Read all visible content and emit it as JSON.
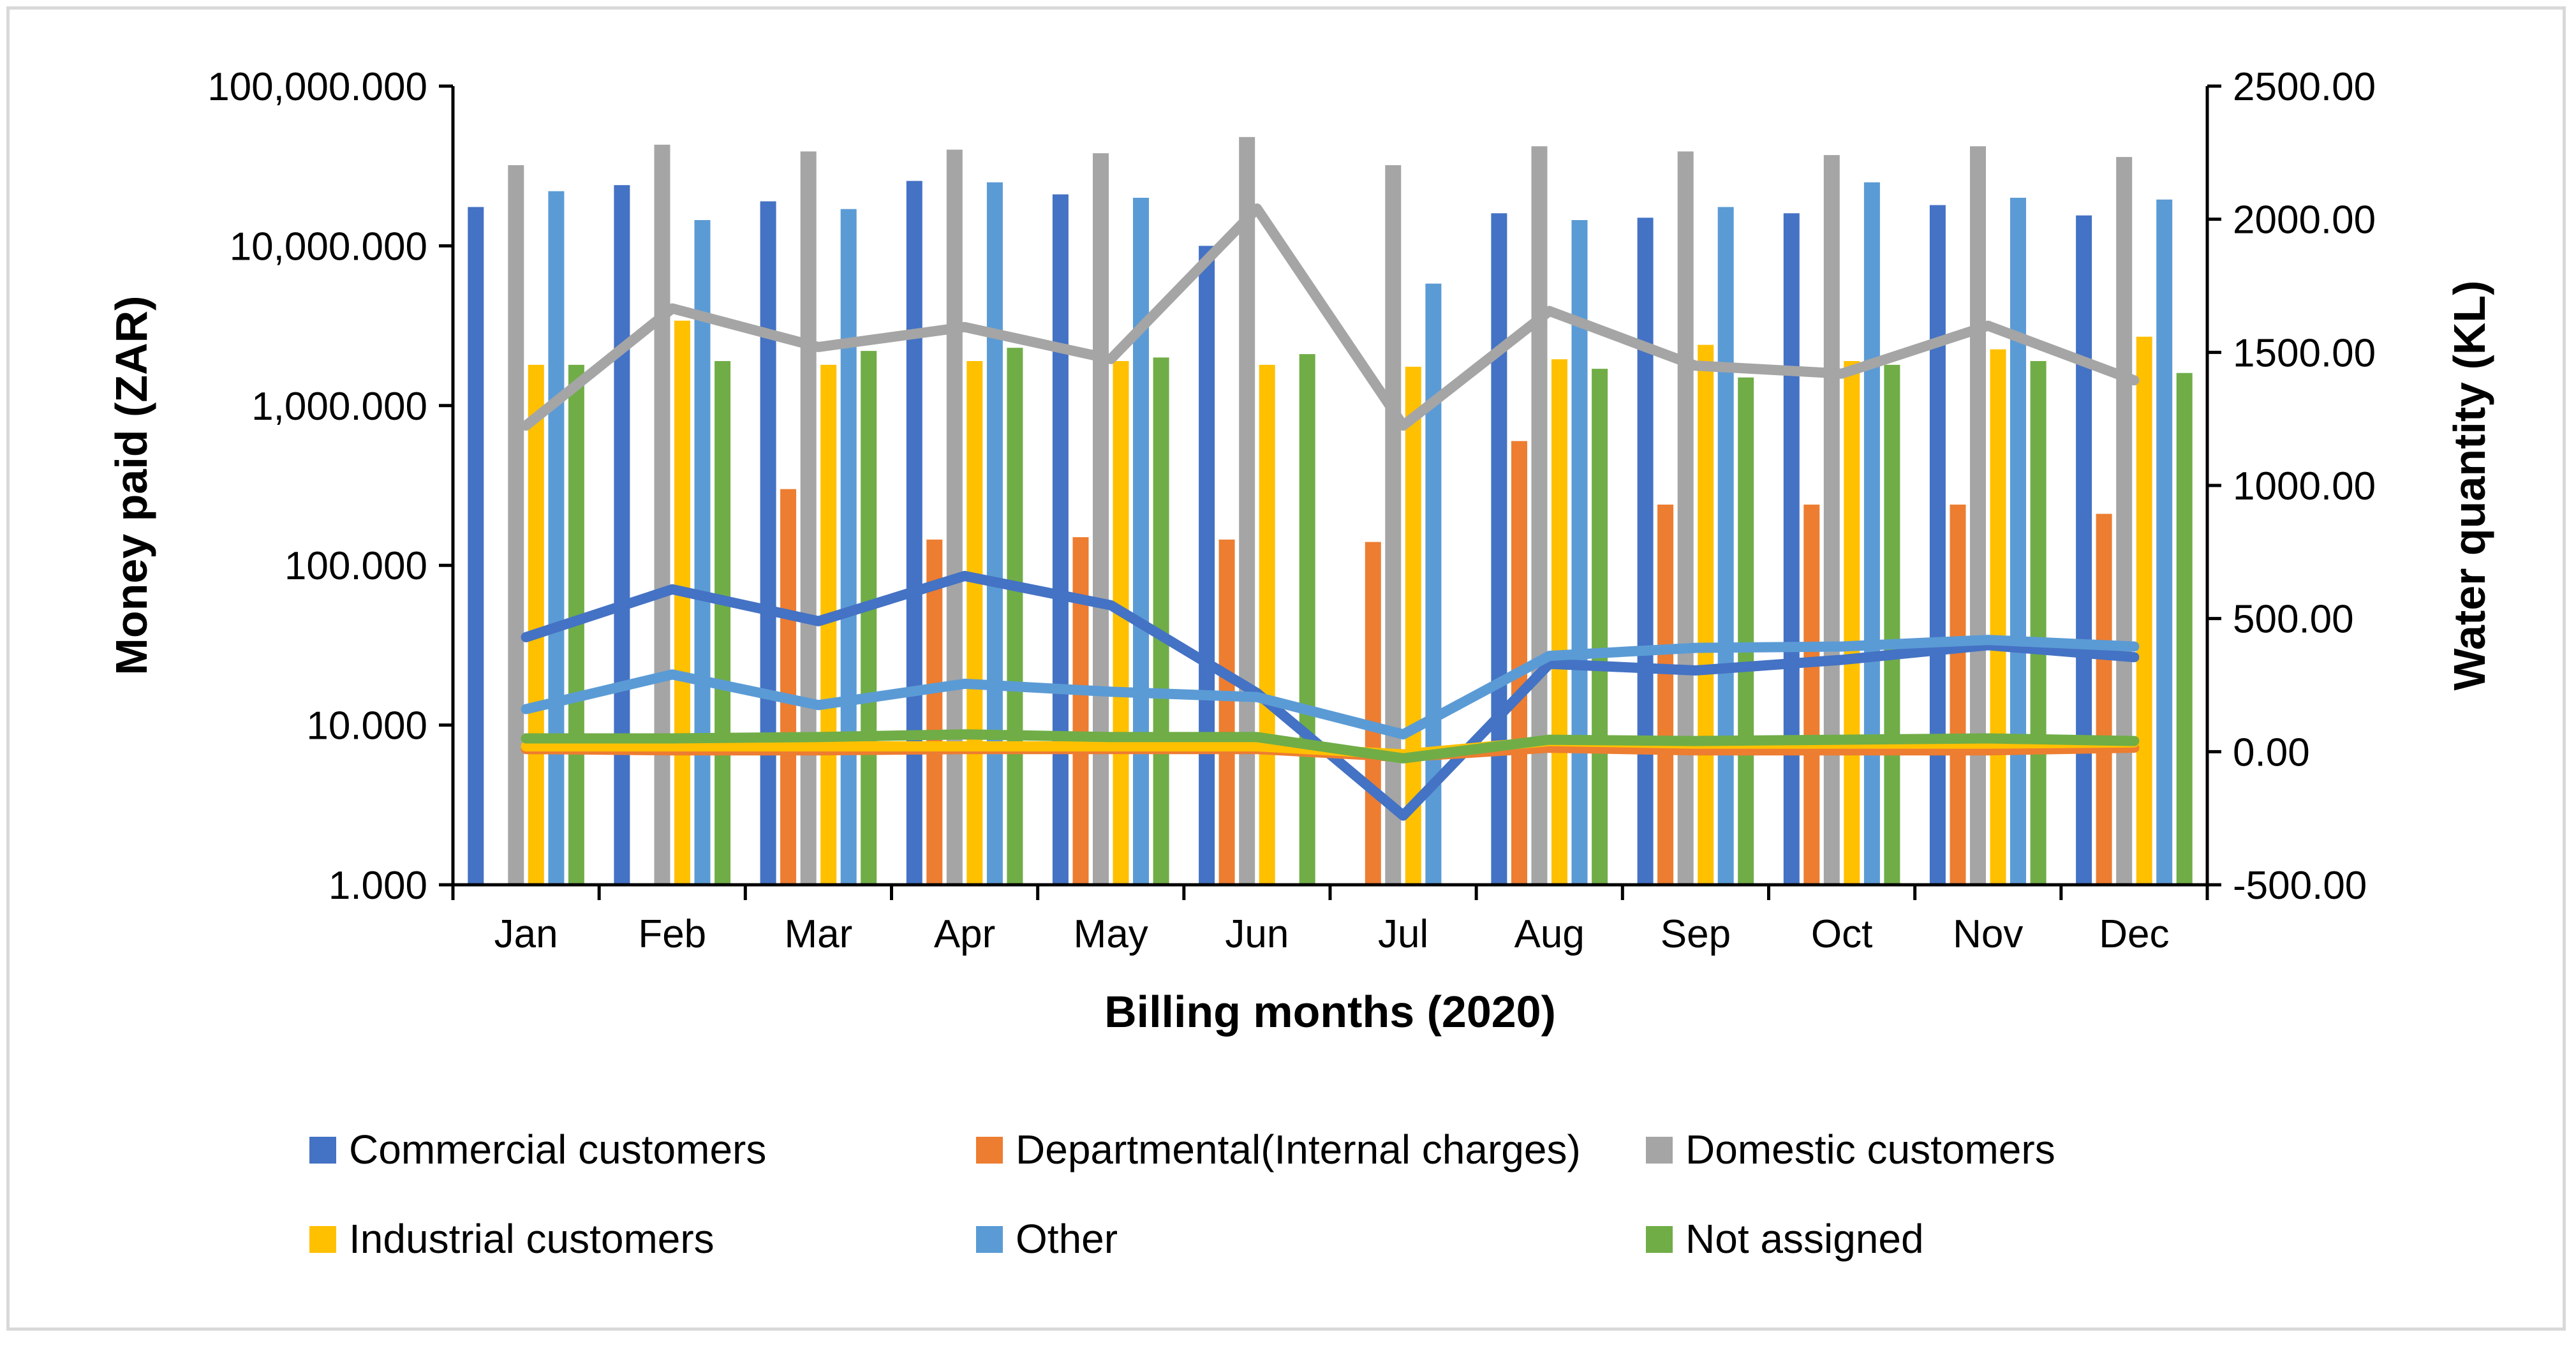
{
  "chart_data": {
    "type": "bar",
    "categories": [
      "Jan",
      "Feb",
      "Mar",
      "Apr",
      "May",
      "Jun",
      "Jul",
      "Aug",
      "Sep",
      "Oct",
      "Nov",
      "Dec"
    ],
    "xlabel": "Billing months (2020)",
    "ylabel": "Money paid (ZAR)",
    "y2label": "Water quantity (KL)",
    "y_scale": "log",
    "ylim": [
      1,
      100000
    ],
    "y_ticks": [
      1,
      10,
      100,
      1000,
      10000,
      100000
    ],
    "y_tick_labels": [
      "1.000",
      "10.000",
      "100.000",
      "1,000.000",
      "10,000.000",
      "100,000.000"
    ],
    "y2lim": [
      -500,
      2500
    ],
    "y2_ticks": [
      -500,
      0,
      500,
      1000,
      1500,
      2000,
      2500
    ],
    "y2_tick_labels": [
      "-500.00",
      "0.00",
      "500.00",
      "1000.00",
      "1500.00",
      "2000.00",
      "2500.00"
    ],
    "bar_series": [
      {
        "name": "Commercial customers",
        "color": "#4472c4",
        "values": [
          17500,
          24000,
          19000,
          25500,
          21000,
          10000,
          null,
          16000,
          15000,
          16000,
          18000,
          15500
        ]
      },
      {
        "name": "Departmental(Internal charges)",
        "color": "#ed7d31",
        "values": [
          null,
          null,
          300,
          145,
          150,
          145,
          140,
          600,
          240,
          240,
          240,
          210
        ]
      },
      {
        "name": "Domestic customers",
        "color": "#a5a5a5",
        "values": [
          32000,
          43000,
          39000,
          40000,
          38000,
          48000,
          32000,
          42000,
          39000,
          37000,
          42000,
          36000
        ]
      },
      {
        "name": "Industrial customers",
        "color": "#ffc000",
        "values": [
          1800,
          3400,
          1800,
          1900,
          1900,
          1800,
          1750,
          1950,
          2400,
          1900,
          2250,
          2700
        ]
      },
      {
        "name": "Other",
        "color": "#5b9bd5",
        "values": [
          22000,
          14500,
          17000,
          25000,
          20000,
          null,
          5800,
          14500,
          17500,
          25000,
          20000,
          19500
        ]
      },
      {
        "name": "Not assigned",
        "color": "#70ad47",
        "values": [
          1800,
          1900,
          2200,
          2300,
          2000,
          2100,
          null,
          1700,
          1500,
          1800,
          1900,
          1600
        ]
      }
    ],
    "line_series": [
      {
        "name": "Commercial customers",
        "color": "#4472c4",
        "values": [
          430,
          610,
          490,
          660,
          550,
          220,
          -240,
          330,
          305,
          345,
          400,
          355
        ]
      },
      {
        "name": "Departmental(Internal charges)",
        "color": "#ed7d31",
        "values": [
          10,
          5,
          5,
          10,
          10,
          10,
          -20,
          15,
          5,
          5,
          5,
          15
        ]
      },
      {
        "name": "Domestic customers",
        "color": "#a5a5a5",
        "values": [
          1225,
          1665,
          1520,
          1595,
          1475,
          2040,
          1225,
          1655,
          1450,
          1420,
          1600,
          1395
        ]
      },
      {
        "name": "Industrial customers",
        "color": "#ffc000",
        "values": [
          20,
          20,
          20,
          20,
          20,
          20,
          -10,
          40,
          30,
          30,
          30,
          35
        ]
      },
      {
        "name": "Other",
        "color": "#5b9bd5",
        "values": [
          160,
          290,
          175,
          255,
          225,
          205,
          65,
          360,
          390,
          395,
          420,
          395
        ]
      },
      {
        "name": "Not assigned",
        "color": "#70ad47",
        "values": [
          50,
          50,
          55,
          65,
          55,
          55,
          -25,
          45,
          40,
          45,
          50,
          40
        ]
      }
    ],
    "legend": [
      "Commercial customers",
      "Departmental(Internal charges)",
      "Domestic customers",
      "Industrial customers",
      "Other",
      "Not assigned"
    ],
    "legend_position": "bottom",
    "grid": false
  }
}
